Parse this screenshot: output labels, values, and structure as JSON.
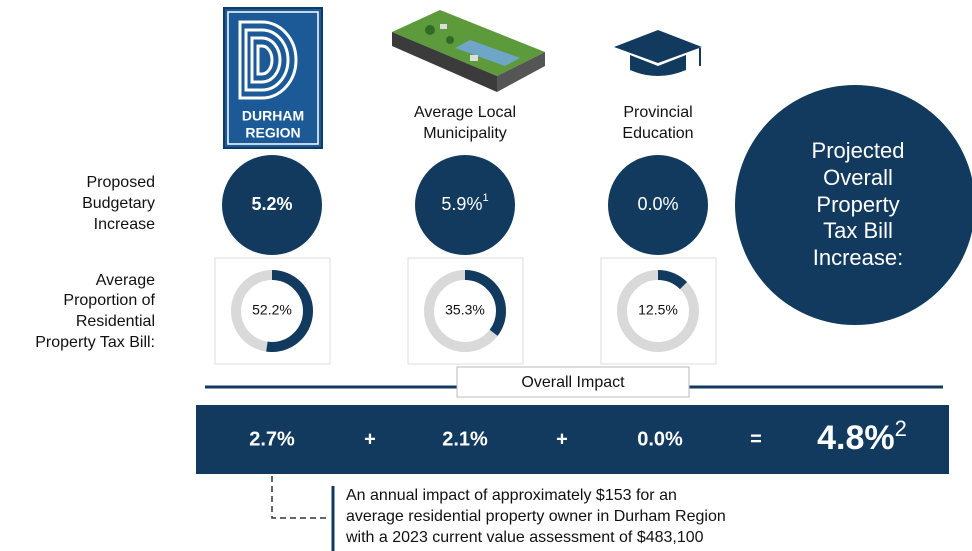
{
  "row_labels": {
    "increase": [
      "Proposed",
      "Budgetary",
      "Increase"
    ],
    "proportion": [
      "Average",
      "Proportion of",
      "Residential",
      "Property Tax Bill:"
    ]
  },
  "columns": [
    {
      "logo": [
        "DURHAM",
        "REGION"
      ],
      "increase": "5.2%",
      "proportion": {
        "value": 52.2,
        "label": "52.2%"
      },
      "impact": "2.7%"
    },
    {
      "heading": [
        "Average Local",
        "Municipality"
      ],
      "increase": "5.9%",
      "increase_note": "1",
      "proportion": {
        "value": 35.3,
        "label": "35.3%"
      },
      "impact": "2.1%"
    },
    {
      "heading": [
        "Provincial",
        "Education"
      ],
      "increase": "0.0%",
      "proportion": {
        "value": 12.5,
        "label": "12.5%"
      },
      "impact": "0.0%"
    }
  ],
  "summary": [
    "Projected",
    "Overall",
    "Property",
    "Tax Bill",
    "Increase:"
  ],
  "overall": {
    "title": "Overall Impact",
    "operators": [
      "+",
      "+",
      "="
    ],
    "total": "4.8%",
    "total_note": "2"
  },
  "footnote": [
    "An annual impact of approximately $153 for an",
    "average residential property owner in Durham Region",
    "with a 2023 current value assessment of $483,100"
  ]
}
